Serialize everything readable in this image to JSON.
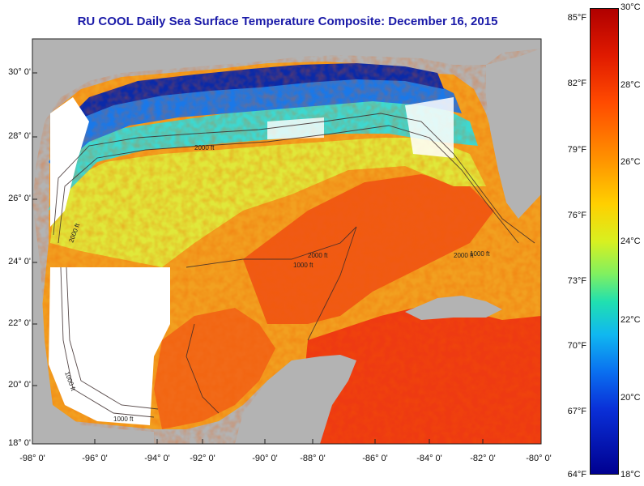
{
  "title": "RU COOL Daily Sea Surface Temperature Composite:  December 16, 2015",
  "lat_labels": [
    "30° 0'",
    "28° 0'",
    "26° 0'",
    "24° 0'",
    "22° 0'",
    "20° 0'",
    "18° 0'"
  ],
  "lon_labels": [
    "-98° 0'",
    "-96° 0'",
    "-94° 0'",
    "-92° 0'",
    "-90° 0'",
    "-88° 0'",
    "-86° 0'",
    "-84° 0'",
    "-82° 0'",
    "-80° 0'"
  ],
  "contour_labels": [
    "2000 ft",
    "2000 ft",
    "1000 ft",
    "2000 ft",
    "1000 ft",
    "1000 ft",
    "2000 ft",
    "1000 ft"
  ],
  "colorbar": {
    "fahrenheit_labels": [
      "85°F",
      "82°F",
      "79°F",
      "76°F",
      "73°F",
      "70°F",
      "67°F",
      "64°F"
    ],
    "celsius_labels": [
      "30°C",
      "28°C",
      "26°C",
      "24°C",
      "22°C",
      "20°C",
      "18°C"
    ],
    "range_c": [
      18,
      30
    ],
    "range_f": [
      64,
      85
    ]
  },
  "colors": {
    "land": "#b3b3b3",
    "no_data": "#ffffff",
    "title": "#1a1aa8",
    "warm": "#e8320a",
    "cool": "#0a2aa8"
  }
}
